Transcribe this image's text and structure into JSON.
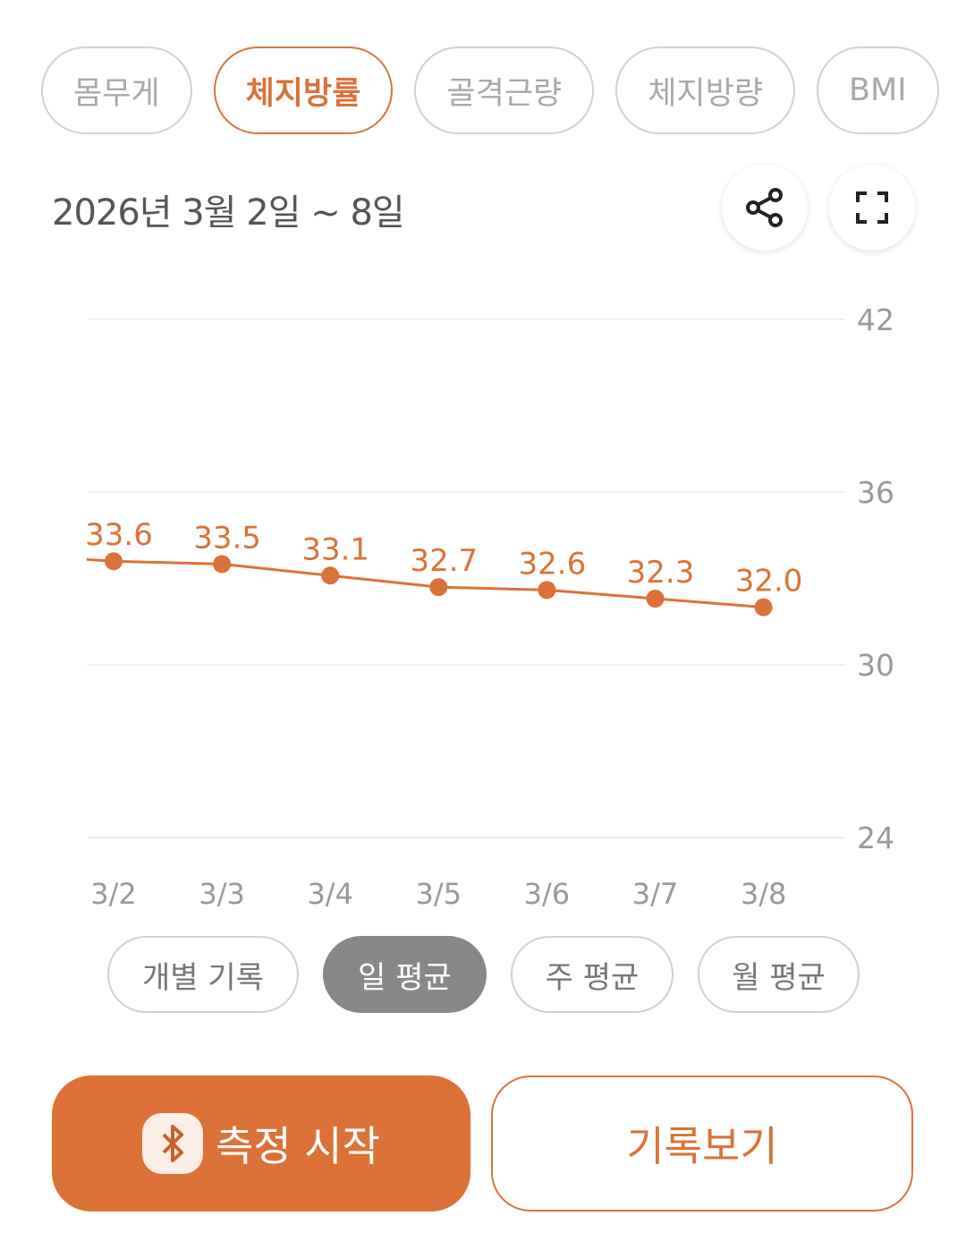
{
  "metric_tabs": [
    {
      "label": "몸무게",
      "active": false
    },
    {
      "label": "체지방률",
      "active": true
    },
    {
      "label": "골격근량",
      "active": false
    },
    {
      "label": "체지방량",
      "active": false
    },
    {
      "label": "BMI",
      "active": false
    }
  ],
  "date_range": "2026년 3월 2일 ~ 8일",
  "share_icon": "share-icon",
  "fullscreen_icon": "fullscreen-icon",
  "chart_data": {
    "type": "line",
    "categories": [
      "3/2",
      "3/3",
      "3/4",
      "3/5",
      "3/6",
      "3/7",
      "3/8"
    ],
    "values": [
      33.6,
      33.5,
      33.1,
      32.7,
      32.6,
      32.3,
      32.0
    ],
    "value_labels": [
      "33.6",
      "33.5",
      "33.1",
      "32.7",
      "32.6",
      "32.3",
      "32.0"
    ],
    "yticks": [
      24,
      30,
      36,
      42
    ],
    "ylim": [
      24,
      42
    ],
    "grid": true,
    "yaxis_position": "right",
    "color": "#dc7237"
  },
  "view_modes": [
    {
      "label": "개별 기록",
      "active": false
    },
    {
      "label": "일 평균",
      "active": true
    },
    {
      "label": "주 평균",
      "active": false
    },
    {
      "label": "월 평균",
      "active": false
    }
  ],
  "actions": {
    "start_label": "측정 시작",
    "start_icon": "bluetooth-icon",
    "history_label": "기록보기"
  },
  "colors": {
    "accent": "#dc7237",
    "inactive": "#a8a8a8",
    "selected_mode": "#888888"
  }
}
